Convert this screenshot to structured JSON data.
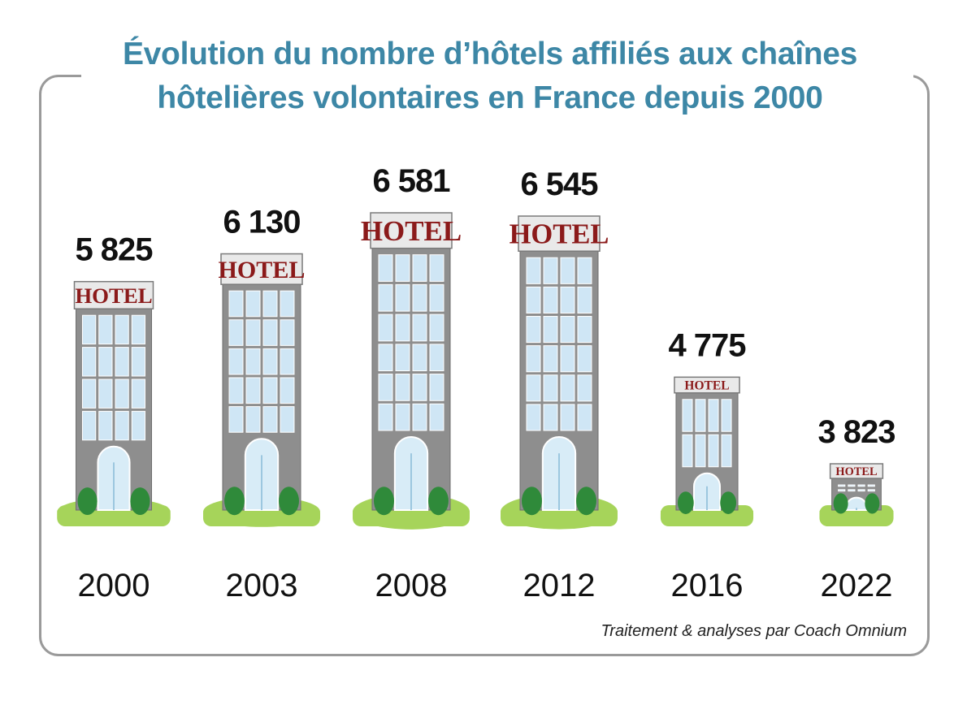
{
  "title": {
    "line1": "Évolution du nombre d’hôtels affiliés aux chaînes",
    "line2": "hôtelières volontaires en France depuis 2000"
  },
  "credit": "Traitement & analyses par Coach Omnium",
  "colors": {
    "title": "#3d87a6",
    "frame": "#9a9a9a",
    "building": "#8e8e8e",
    "window": "#cfe6f5",
    "sign_text": "#8b1a1a",
    "lawn": "#a6d45a",
    "bush": "#2f8a3a"
  },
  "chart_data": {
    "type": "bar",
    "title": "Évolution du nombre d’hôtels affiliés aux chaînes hôtelières volontaires en France depuis 2000",
    "categories": [
      "2000",
      "2003",
      "2008",
      "2012",
      "2016",
      "2022"
    ],
    "values": [
      5825,
      6130,
      6581,
      6545,
      4775,
      3823
    ],
    "value_labels": [
      "5 825",
      "6 130",
      "6 581",
      "6 545",
      "4 775",
      "3 823"
    ],
    "bar_label": "HOTEL",
    "xlabel": "",
    "ylabel": "",
    "ylim": [
      0,
      7000
    ]
  }
}
